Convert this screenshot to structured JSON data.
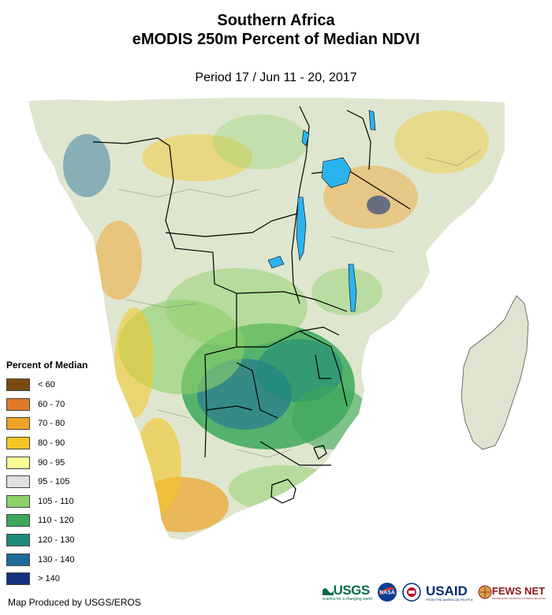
{
  "header": {
    "title_line1": "Southern Africa",
    "title_line2": "eMODIS 250m Percent of Median NDVI",
    "period": "Period 17 / Jun 11 - 20, 2017"
  },
  "legend": {
    "title": "Percent of Median",
    "items": [
      {
        "label": "< 60",
        "color": "#7a4a12"
      },
      {
        "label": "60 - 70",
        "color": "#e07a2a"
      },
      {
        "label": "70 - 80",
        "color": "#f0a22a"
      },
      {
        "label": "80 - 90",
        "color": "#f3c724"
      },
      {
        "label": "90 - 95",
        "color": "#fdfd96"
      },
      {
        "label": "95 - 105",
        "color": "#e0e0e0"
      },
      {
        "label": "105 - 110",
        "color": "#8ed06a"
      },
      {
        "label": "110 - 120",
        "color": "#3da85a"
      },
      {
        "label": "120 - 130",
        "color": "#1e8a7a"
      },
      {
        "label": "130 - 140",
        "color": "#1e6a9a"
      },
      {
        "label": "> 140",
        "color": "#14307e"
      }
    ]
  },
  "footer": {
    "credit": "Map Produced by USGS/EROS"
  },
  "logos": {
    "usgs": "USGS",
    "usgs_tagline": "science for a changing world",
    "nasa": "NASA",
    "usaid": "USAID",
    "usaid_tagline": "FROM THE AMERICAN PEOPLE",
    "fews": "FEWS NET",
    "fews_tagline": "FAMINE EARLY WARNING SYSTEMS NETWORK"
  },
  "colors": {
    "lake": "#2bb3f0",
    "ocean": "#ffffff",
    "border_national": "#000000",
    "border_admin": "#555555"
  }
}
